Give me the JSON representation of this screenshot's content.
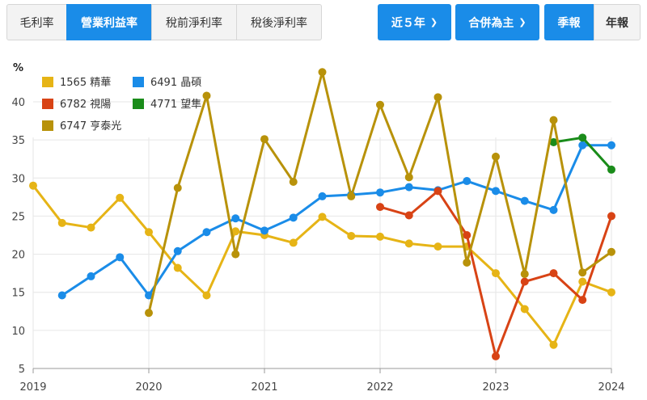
{
  "tabs": [
    {
      "label": "毛利率",
      "active": false
    },
    {
      "label": "營業利益率",
      "active": true
    },
    {
      "label": "稅前淨利率",
      "active": false
    },
    {
      "label": "稅後淨利率",
      "active": false
    }
  ],
  "controls": {
    "period": {
      "label": "近５年",
      "icon": "chevron-down-icon"
    },
    "consolidation": {
      "label": "合併為主",
      "icon": "chevron-down-icon"
    },
    "quarterly": "季報",
    "annual": "年報"
  },
  "colors": {
    "accent": "#1a8ce8"
  },
  "chart_data": {
    "type": "line",
    "ylabel": "%",
    "ylim": [
      5,
      45
    ],
    "yticks": [
      5,
      10,
      15,
      20,
      25,
      30,
      35,
      40
    ],
    "xlim": [
      2019,
      2024
    ],
    "xticks": [
      "2019",
      "2020",
      "2021",
      "2022",
      "2023",
      "2024"
    ],
    "grid": true,
    "legend_position": "top-left",
    "series": [
      {
        "name": "1565 精華",
        "color": "#e6b416",
        "x": [
          2019.0,
          2019.25,
          2019.5,
          2019.75,
          2020.0,
          2020.25,
          2020.5,
          2020.75,
          2021.0,
          2021.25,
          2021.5,
          2021.75,
          2022.0,
          2022.25,
          2022.5,
          2022.75,
          2023.0,
          2023.25,
          2023.5,
          2023.75,
          2024.0
        ],
        "values": [
          29.0,
          24.1,
          23.5,
          27.4,
          22.9,
          18.2,
          14.6,
          23.0,
          22.5,
          21.5,
          24.9,
          22.4,
          22.3,
          21.4,
          21.0,
          21.0,
          17.5,
          12.8,
          8.1,
          16.4,
          15.0
        ]
      },
      {
        "name": "6491 晶碩",
        "color": "#1a8ce8",
        "x": [
          2019.25,
          2019.5,
          2019.75,
          2020.0,
          2020.25,
          2020.5,
          2020.75,
          2021.0,
          2021.25,
          2021.5,
          2021.75,
          2022.0,
          2022.25,
          2022.5,
          2022.75,
          2023.0,
          2023.25,
          2023.5,
          2023.75,
          2024.0
        ],
        "values": [
          14.6,
          17.1,
          19.6,
          14.6,
          20.4,
          22.9,
          24.7,
          23.1,
          24.8,
          27.6,
          27.8,
          28.1,
          28.8,
          28.4,
          29.6,
          28.3,
          27.0,
          25.8,
          34.3,
          34.3
        ]
      },
      {
        "name": "6782 視陽",
        "color": "#d84315",
        "x": [
          2022.0,
          2022.25,
          2022.5,
          2022.75,
          2023.0,
          2023.25,
          2023.5,
          2023.75,
          2024.0
        ],
        "values": [
          26.2,
          25.1,
          28.3,
          22.5,
          6.6,
          16.4,
          17.5,
          14.0,
          25.0
        ]
      },
      {
        "name": "4771 望隼",
        "color": "#1a8c1a",
        "x": [
          2023.5,
          2023.75,
          2024.0
        ],
        "values": [
          34.7,
          35.3,
          31.1
        ]
      },
      {
        "name": "6747 亨泰光",
        "color": "#b8920a",
        "x": [
          2020.0,
          2020.25,
          2020.5,
          2020.75,
          2021.0,
          2021.25,
          2021.5,
          2021.75,
          2022.0,
          2022.25,
          2022.5,
          2022.75,
          2023.0,
          2023.25,
          2023.5,
          2023.75,
          2024.0
        ],
        "values": [
          12.3,
          28.7,
          40.8,
          20.0,
          35.1,
          29.5,
          43.9,
          27.6,
          39.6,
          30.1,
          40.6,
          18.9,
          32.8,
          17.4,
          37.6,
          17.6,
          20.3
        ]
      }
    ]
  }
}
